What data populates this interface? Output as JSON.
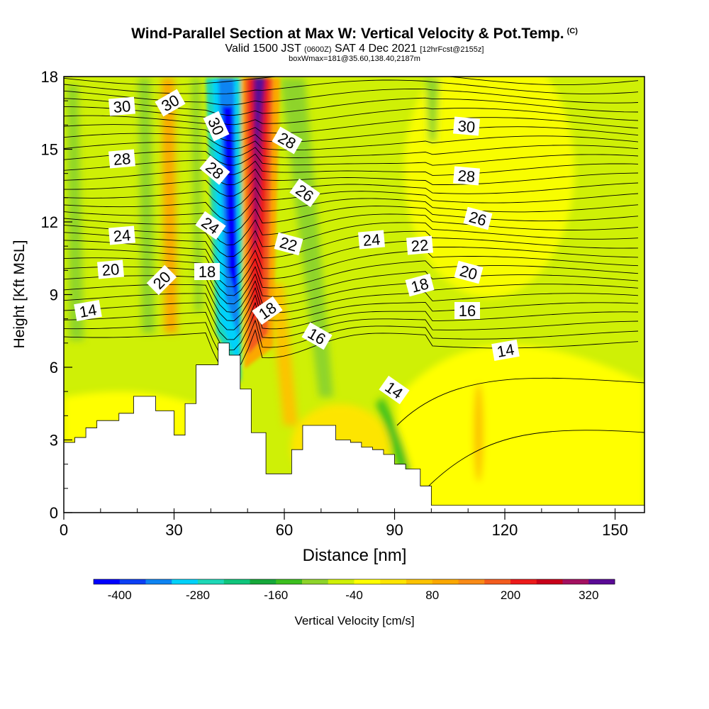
{
  "header": {
    "title": "Wind-Parallel Section at Max W: Vertical Velocity & Pot.Temp.",
    "copyright": "(C)",
    "subtitle_a": "Valid 1500 JST",
    "subtitle_b": "(0600Z)",
    "subtitle_c": "SAT 4 Dec 2021",
    "subtitle_d": "[12hrFcst@2155z]",
    "subtitle2": "boxWmax=181@35.60,138.40,2187m"
  },
  "chart_data": {
    "type": "heatmap",
    "xlabel": "Distance [nm]",
    "ylabel": "Height [Kft MSL]",
    "xlim": [
      0,
      158
    ],
    "ylim": [
      0,
      18
    ],
    "xticks": [
      "0",
      "30",
      "60",
      "90",
      "120",
      "150"
    ],
    "yticks": [
      "0",
      "3",
      "6",
      "9",
      "12",
      "15",
      "18"
    ],
    "colorbar": {
      "label": "Vertical Velocity [cm/s]",
      "tick_labels": [
        "-400",
        "-280",
        "-160",
        "-40",
        "80",
        "200",
        "320"
      ],
      "colors": [
        "#0000ff",
        "#0c3ff5",
        "#0e84f2",
        "#00d2fa",
        "#1dd8b7",
        "#10c57c",
        "#16a83a",
        "#3cbf1e",
        "#8ed42a",
        "#cff006",
        "#ffff00",
        "#fde500",
        "#fcc300",
        "#fba800",
        "#f98b17",
        "#f35c1e",
        "#ec1a1a",
        "#c8001a",
        "#a31060",
        "#5a0a96"
      ]
    },
    "theta_contour_labels": [
      "30",
      "30",
      "30",
      "30",
      "28",
      "28",
      "28",
      "28",
      "26",
      "26",
      "24",
      "24",
      "24",
      "22",
      "22",
      "20",
      "20",
      "20",
      "18",
      "18",
      "18",
      "16",
      "16",
      "14",
      "14",
      "14"
    ],
    "terrain_profile": {
      "distance_nm": [
        0,
        3,
        6,
        9,
        15,
        19,
        22,
        25,
        27,
        30,
        33,
        36,
        42,
        45,
        48,
        51,
        55,
        58,
        62,
        65,
        71,
        74,
        78,
        81,
        84,
        87,
        90,
        93,
        97,
        100,
        158
      ],
      "height_kft": [
        2.9,
        3.1,
        3.5,
        3.8,
        4.1,
        4.8,
        4.8,
        4.2,
        4.2,
        3.2,
        4.5,
        6.1,
        7.0,
        6.5,
        5.1,
        3.3,
        1.6,
        1.6,
        2.6,
        3.6,
        3.6,
        3.0,
        2.9,
        2.7,
        2.6,
        2.4,
        2.0,
        1.8,
        1.1,
        0.3,
        0.3
      ]
    }
  }
}
